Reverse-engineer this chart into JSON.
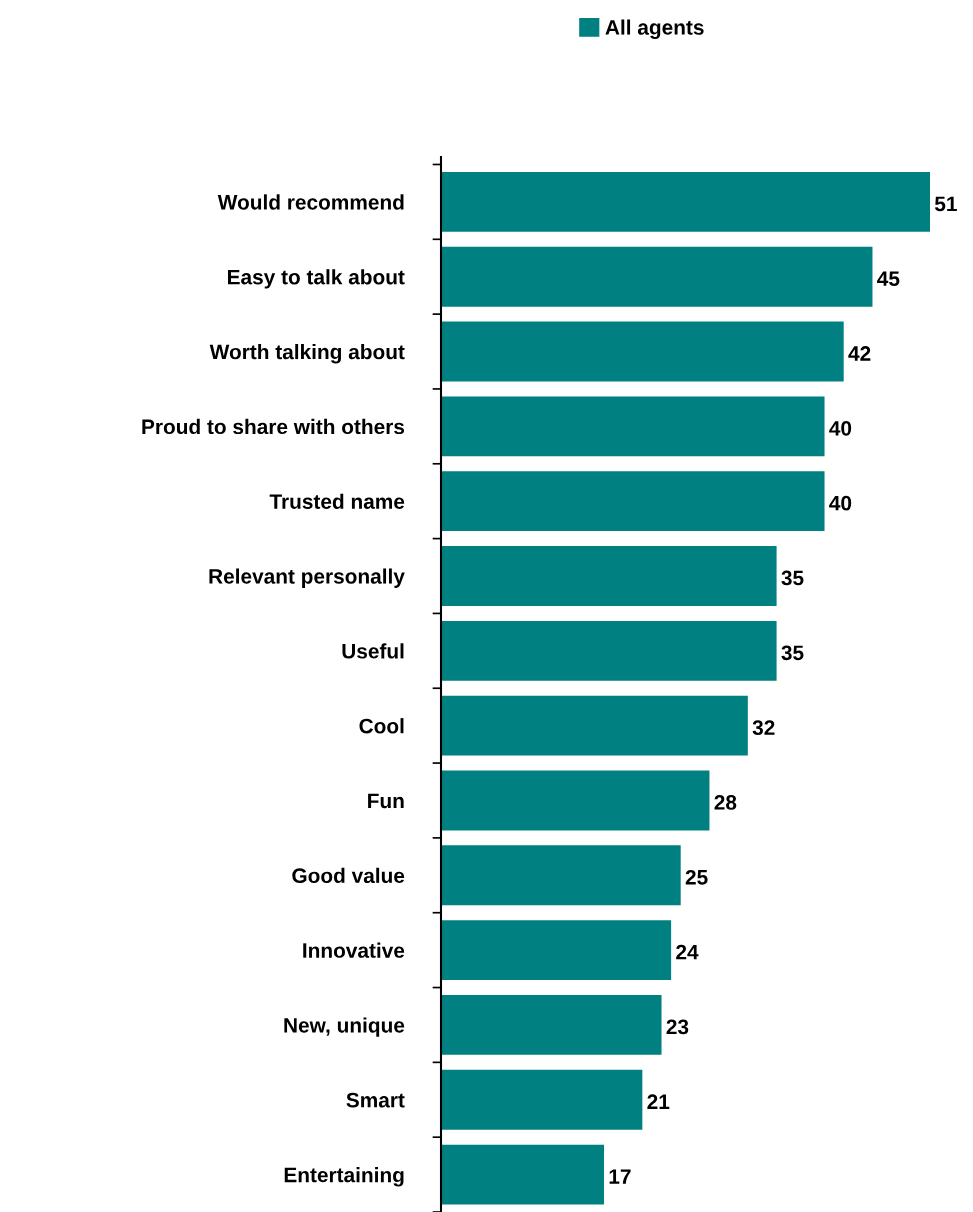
{
  "chart_data": {
    "type": "bar",
    "orientation": "horizontal",
    "categories": [
      "Would recommend",
      "Easy to talk about",
      "Worth talking about",
      "Proud to share with others",
      "Trusted name",
      "Relevant personally",
      "Useful",
      "Cool",
      "Fun",
      "Good value",
      "Innovative",
      "New, unique",
      "Smart",
      "Entertaining"
    ],
    "series": [
      {
        "name": "All agents",
        "color": "#008080",
        "values": [
          51,
          45,
          42,
          40,
          40,
          35,
          35,
          32,
          28,
          25,
          24,
          23,
          21,
          17
        ]
      }
    ],
    "data_labels": true,
    "legend": "top",
    "grid": false
  }
}
